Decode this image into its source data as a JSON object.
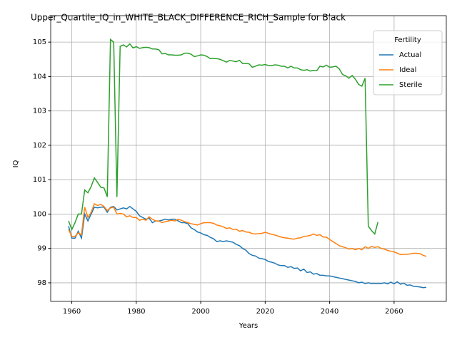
{
  "chart_data": {
    "type": "line",
    "title": "Upper_Quartile_IQ_in_WHITE_BLACK_DIFFERENCE_RICH_Sample for Black",
    "xlabel": "Years",
    "ylabel": "IQ",
    "x": [
      1959,
      1960,
      1961,
      1962,
      1963,
      1964,
      1965,
      1966,
      1967,
      1968,
      1969,
      1970,
      1971,
      1972,
      1973,
      1974,
      1975,
      1976,
      1977,
      1978,
      1979,
      1980,
      1981,
      1982,
      1983,
      1984,
      1985,
      1986,
      1987,
      1988,
      1989,
      1990,
      1991,
      1992,
      1993,
      1994,
      1995,
      1996,
      1997,
      1998,
      1999,
      2000,
      2001,
      2002,
      2003,
      2004,
      2005,
      2006,
      2007,
      2008,
      2009,
      2010,
      2011,
      2012,
      2013,
      2014,
      2015,
      2016,
      2017,
      2018,
      2019,
      2020,
      2021,
      2022,
      2023,
      2024,
      2025,
      2026,
      2027,
      2028,
      2029,
      2030,
      2031,
      2032,
      2033,
      2034,
      2035,
      2036,
      2037,
      2038,
      2039,
      2040,
      2041,
      2042,
      2043,
      2044,
      2045,
      2046,
      2047,
      2048,
      2049,
      2050,
      2051,
      2052,
      2053,
      2054,
      2055,
      2056,
      2057,
      2058,
      2059,
      2060,
      2061,
      2062,
      2063,
      2064,
      2065,
      2066,
      2067,
      2068,
      2069,
      2070
    ],
    "series": [
      {
        "name": "Actual",
        "color": "#1f77b4",
        "values": [
          99.65,
          99.3,
          99.3,
          99.5,
          99.3,
          100.0,
          99.8,
          100.0,
          100.2,
          100.18,
          100.2,
          100.2,
          100.05,
          100.2,
          100.22,
          100.12,
          100.15,
          100.18,
          100.15,
          100.22,
          100.15,
          100.08,
          99.95,
          99.9,
          99.85,
          99.88,
          99.75,
          99.8,
          99.8,
          99.82,
          99.85,
          99.83,
          99.85,
          99.85,
          99.8,
          99.75,
          99.75,
          99.72,
          99.6,
          99.55,
          99.48,
          99.45,
          99.4,
          99.38,
          99.32,
          99.28,
          99.2,
          99.22,
          99.2,
          99.22,
          99.2,
          99.18,
          99.12,
          99.08,
          99.0,
          98.95,
          98.85,
          98.8,
          98.78,
          98.72,
          98.7,
          98.68,
          98.62,
          98.6,
          98.57,
          98.52,
          98.5,
          98.5,
          98.45,
          98.47,
          98.42,
          98.43,
          98.35,
          98.4,
          98.3,
          98.32,
          98.25,
          98.27,
          98.22,
          98.22,
          98.2,
          98.2,
          98.18,
          98.16,
          98.14,
          98.12,
          98.1,
          98.08,
          98.06,
          98.04,
          98.0,
          98.02,
          97.98,
          98.0,
          97.98,
          97.98,
          97.98,
          97.98,
          98.0,
          97.97,
          98.02,
          97.97,
          98.03,
          97.96,
          97.99,
          97.93,
          97.94,
          97.9,
          97.89,
          97.88,
          97.86,
          97.87
        ]
      },
      {
        "name": "Ideal",
        "color": "#ff7f0e",
        "values": [
          99.55,
          99.35,
          99.35,
          99.45,
          99.4,
          100.2,
          99.9,
          100.05,
          100.3,
          100.25,
          100.28,
          100.22,
          100.1,
          100.18,
          100.2,
          100.0,
          100.02,
          100.0,
          99.92,
          99.95,
          99.9,
          99.9,
          99.82,
          99.85,
          99.82,
          99.92,
          99.85,
          99.8,
          99.8,
          99.75,
          99.78,
          99.8,
          99.82,
          99.8,
          99.85,
          99.82,
          99.78,
          99.75,
          99.72,
          99.7,
          99.68,
          99.72,
          99.75,
          99.75,
          99.75,
          99.73,
          99.68,
          99.66,
          99.63,
          99.58,
          99.6,
          99.55,
          99.56,
          99.5,
          99.52,
          99.48,
          99.47,
          99.43,
          99.42,
          99.43,
          99.44,
          99.47,
          99.44,
          99.41,
          99.39,
          99.36,
          99.33,
          99.31,
          99.3,
          99.28,
          99.27,
          99.3,
          99.31,
          99.35,
          99.36,
          99.38,
          99.42,
          99.38,
          99.4,
          99.33,
          99.33,
          99.26,
          99.2,
          99.14,
          99.08,
          99.05,
          99.02,
          98.98,
          99.0,
          98.96,
          99.0,
          98.96,
          99.05,
          99.0,
          99.06,
          99.03,
          99.05,
          99.0,
          98.98,
          98.94,
          98.92,
          98.9,
          98.86,
          98.82,
          98.83,
          98.83,
          98.84,
          98.86,
          98.86,
          98.85,
          98.8,
          98.77
        ]
      },
      {
        "name": "Sterile",
        "color": "#2ca02c",
        "values": [
          99.8,
          99.55,
          99.75,
          100.0,
          100.0,
          100.7,
          100.62,
          100.8,
          101.05,
          100.92,
          100.78,
          100.76,
          100.5,
          105.08,
          105.0,
          100.5,
          104.88,
          104.92,
          104.86,
          104.95,
          104.83,
          104.87,
          104.82,
          104.84,
          104.85,
          104.84,
          104.8,
          104.8,
          104.78,
          104.66,
          104.67,
          104.63,
          104.63,
          104.62,
          104.62,
          104.63,
          104.68,
          104.68,
          104.65,
          104.58,
          104.6,
          104.63,
          104.62,
          104.58,
          104.52,
          104.53,
          104.52,
          104.5,
          104.46,
          104.42,
          104.47,
          104.45,
          104.43,
          104.47,
          104.38,
          104.38,
          104.37,
          104.27,
          104.3,
          104.34,
          104.33,
          104.35,
          104.32,
          104.32,
          104.34,
          104.33,
          104.3,
          104.3,
          104.25,
          104.3,
          104.25,
          104.25,
          104.2,
          104.18,
          104.2,
          104.16,
          104.18,
          104.17,
          104.3,
          104.28,
          104.33,
          104.27,
          104.28,
          104.3,
          104.22,
          104.06,
          104.02,
          103.95,
          104.03,
          103.92,
          103.77,
          103.72,
          103.95,
          99.65,
          99.52,
          99.42,
          99.77,
          null,
          null,
          null,
          null,
          null,
          null,
          null,
          null,
          null,
          null,
          null,
          null,
          null,
          null,
          null
        ]
      }
    ],
    "xlim": [
      1953.45,
      2076.2
    ],
    "ylim": [
      97.46,
      105.77
    ],
    "xticks": [
      1960,
      1980,
      2000,
      2020,
      2040,
      2060
    ],
    "yticks": [
      98,
      99,
      100,
      101,
      102,
      103,
      104,
      105
    ],
    "grid": true,
    "legend_title": "Fertility",
    "legend_loc": "upper right"
  }
}
